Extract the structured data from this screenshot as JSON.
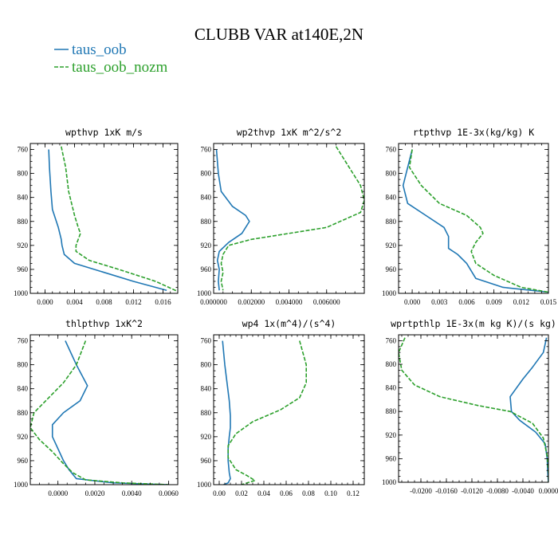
{
  "figure_title": "CLUBB VAR at140E,2N",
  "legend": [
    {
      "label": "taus_oob",
      "color": "#1f77b4",
      "dash": ""
    },
    {
      "label": "taus_oob_nozm",
      "color": "#2ca02c",
      "dash": "5,2"
    }
  ],
  "chart_data": [
    {
      "type": "line",
      "title": "wpthvp  1xK m/s",
      "xlim": [
        -0.002,
        0.018
      ],
      "ylim": [
        1000,
        750
      ],
      "xticks": [
        0.0,
        0.004,
        0.008,
        0.012,
        0.016
      ],
      "xtick_labels": [
        "0.000",
        "0.004",
        "0.008",
        "0.012",
        "0.016"
      ],
      "yticks": [
        760,
        800,
        840,
        880,
        920,
        960,
        1000
      ],
      "ytick_labels": [
        "760",
        "800",
        "840",
        "880",
        "920",
        "960",
        "1000"
      ],
      "series": [
        {
          "name": "taus_oob",
          "x": [
            0.0005,
            0.0006,
            0.0008,
            0.001,
            0.0018,
            0.0022,
            0.0023,
            0.0026,
            0.004,
            0.008,
            0.012,
            0.0165
          ],
          "y": [
            760,
            790,
            830,
            860,
            890,
            910,
            920,
            935,
            950,
            965,
            980,
            995
          ]
        },
        {
          "name": "taus_oob_nozm",
          "x": [
            0.0022,
            0.0028,
            0.0032,
            0.004,
            0.0045,
            0.0048,
            0.0042,
            0.0042,
            0.006,
            0.01,
            0.015,
            0.0182
          ],
          "y": [
            755,
            790,
            830,
            870,
            890,
            900,
            920,
            930,
            945,
            960,
            980,
            998
          ]
        }
      ]
    },
    {
      "type": "line",
      "title": "wp2thvp  1xK m^2/s^2",
      "xlim": [
        0.0,
        0.008
      ],
      "ylim": [
        1000,
        750
      ],
      "xticks": [
        0.0,
        0.002,
        0.004,
        0.006
      ],
      "xtick_labels": [
        "0.000000",
        "0.002000",
        "0.004000",
        "0.006000"
      ],
      "yticks": [
        760,
        800,
        840,
        880,
        920,
        960,
        1000
      ],
      "ytick_labels": [
        "760",
        "800",
        "840",
        "880",
        "920",
        "960",
        "1000"
      ],
      "series": [
        {
          "name": "taus_oob",
          "x": [
            0.00015,
            0.00025,
            0.0004,
            0.001,
            0.0017,
            0.0019,
            0.0015,
            0.0008,
            0.0003,
            0.0002,
            0.0003,
            0.00025,
            0.0003
          ],
          "y": [
            760,
            800,
            830,
            855,
            870,
            880,
            900,
            915,
            930,
            945,
            960,
            980,
            995
          ]
        },
        {
          "name": "taus_oob_nozm",
          "x": [
            0.0065,
            0.0072,
            0.0078,
            0.008,
            0.0078,
            0.006,
            0.002,
            0.0008,
            0.0005,
            0.0004,
            0.0005,
            0.0004,
            0.0005
          ],
          "y": [
            755,
            790,
            820,
            845,
            865,
            890,
            910,
            920,
            935,
            950,
            965,
            980,
            995
          ]
        }
      ]
    },
    {
      "type": "line",
      "title": "rtpthvp  1E-3x(kg/kg) K",
      "xlim": [
        -0.0015,
        0.015
      ],
      "ylim": [
        1000,
        750
      ],
      "xticks": [
        0.0,
        0.003,
        0.006,
        0.009,
        0.012,
        0.015
      ],
      "xtick_labels": [
        "0.000",
        "0.003",
        "0.006",
        "0.009",
        "0.012",
        "0.015"
      ],
      "yticks": [
        760,
        800,
        840,
        880,
        920,
        960,
        1000
      ],
      "ytick_labels": [
        "760",
        "800",
        "840",
        "880",
        "920",
        "960",
        "1000"
      ],
      "series": [
        {
          "name": "taus_oob",
          "x": [
            0.0,
            -0.0005,
            -0.001,
            -0.0005,
            0.0015,
            0.0035,
            0.004,
            0.004,
            0.005,
            0.006,
            0.007,
            0.01,
            0.015
          ],
          "y": [
            760,
            790,
            820,
            850,
            870,
            890,
            905,
            925,
            935,
            950,
            975,
            990,
            998
          ]
        },
        {
          "name": "taus_oob_nozm",
          "x": [
            0.0,
            -0.0003,
            0.001,
            0.003,
            0.006,
            0.0075,
            0.0078,
            0.007,
            0.0065,
            0.007,
            0.009,
            0.012,
            0.015
          ],
          "y": [
            760,
            790,
            820,
            850,
            870,
            890,
            900,
            915,
            930,
            950,
            970,
            990,
            998
          ]
        }
      ]
    },
    {
      "type": "line",
      "title": "thlpthvp  1xK^2",
      "xlim": [
        -0.0015,
        0.0065
      ],
      "ylim": [
        1000,
        750
      ],
      "xticks": [
        0.0,
        0.002,
        0.004,
        0.006
      ],
      "xtick_labels": [
        "0.0000",
        "0.0020",
        "0.0040",
        "0.0060"
      ],
      "yticks": [
        760,
        800,
        840,
        880,
        920,
        960,
        1000
      ],
      "ytick_labels": [
        "760",
        "800",
        "840",
        "880",
        "920",
        "960",
        "1000"
      ],
      "series": [
        {
          "name": "taus_oob",
          "x": [
            0.0004,
            0.001,
            0.0016,
            0.0012,
            0.0003,
            -0.0003,
            -0.0003,
            0.0,
            0.0003,
            0.0006,
            0.001,
            0.003,
            0.006
          ],
          "y": [
            760,
            800,
            835,
            860,
            880,
            900,
            920,
            940,
            960,
            975,
            990,
            997,
            1000
          ]
        },
        {
          "name": "taus_oob_nozm",
          "x": [
            0.0015,
            0.001,
            0.0003,
            -0.0005,
            -0.0013,
            -0.0015,
            -0.001,
            -0.0003,
            0.0003,
            0.0008,
            0.0015,
            0.0035,
            0.006
          ],
          "y": [
            760,
            800,
            830,
            855,
            880,
            905,
            925,
            945,
            965,
            980,
            992,
            997,
            1000
          ]
        }
      ]
    },
    {
      "type": "line",
      "title": "wp4  1x(m^4)/(s^4)",
      "xlim": [
        -0.005,
        0.13
      ],
      "ylim": [
        1000,
        750
      ],
      "xticks": [
        0.0,
        0.02,
        0.04,
        0.06,
        0.08,
        0.1,
        0.12
      ],
      "xtick_labels": [
        "0.00",
        "0.02",
        "0.04",
        "0.06",
        "0.08",
        "0.10",
        "0.12"
      ],
      "yticks": [
        760,
        800,
        840,
        880,
        920,
        960,
        1000
      ],
      "ytick_labels": [
        "760",
        "800",
        "840",
        "880",
        "920",
        "960",
        "1000"
      ],
      "series": [
        {
          "name": "taus_oob",
          "x": [
            0.003,
            0.005,
            0.007,
            0.009,
            0.01,
            0.01,
            0.009,
            0.008,
            0.008,
            0.009,
            0.01,
            0.008,
            0.004
          ],
          "y": [
            760,
            800,
            830,
            860,
            885,
            905,
            920,
            940,
            960,
            980,
            990,
            997,
            1000
          ]
        },
        {
          "name": "taus_oob_nozm",
          "x": [
            0.072,
            0.078,
            0.078,
            0.072,
            0.055,
            0.03,
            0.015,
            0.008,
            0.008,
            0.015,
            0.025,
            0.032,
            0.02
          ],
          "y": [
            760,
            800,
            830,
            855,
            875,
            895,
            915,
            935,
            955,
            975,
            985,
            993,
            1000
          ]
        }
      ]
    },
    {
      "type": "line",
      "title": "wprtpthlp  1E-3x(m kg K)/(s kg)",
      "xlim": [
        -0.0235,
        0.0
      ],
      "ylim": [
        1000,
        750
      ],
      "xticks": [
        -0.02,
        -0.016,
        -0.012,
        -0.008,
        -0.004,
        0.0
      ],
      "xtick_labels": [
        "-0.0200",
        "-0.0160",
        "-0.0120",
        "-0.0080",
        "-0.0040",
        "0.0000"
      ],
      "yticks": [
        760,
        800,
        840,
        880,
        920,
        960,
        1000
      ],
      "ytick_labels": [
        "760",
        "800",
        "840",
        "880",
        "920",
        "960",
        "1000"
      ],
      "series": [
        {
          "name": "taus_oob",
          "x": [
            -0.0003,
            -0.0008,
            -0.0025,
            -0.004,
            -0.006,
            -0.0058,
            -0.0045,
            -0.002,
            -0.0005,
            -0.0002,
            -0.0001,
            0.0
          ],
          "y": [
            755,
            780,
            805,
            825,
            855,
            880,
            895,
            915,
            935,
            960,
            985,
            1000
          ]
        },
        {
          "name": "taus_oob_nozm",
          "x": [
            -0.0225,
            -0.0235,
            -0.023,
            -0.021,
            -0.017,
            -0.011,
            -0.006,
            -0.0025,
            -0.0008,
            -0.0002,
            0.0,
            0.0
          ],
          "y": [
            755,
            780,
            810,
            835,
            855,
            870,
            880,
            900,
            925,
            955,
            985,
            1000
          ]
        }
      ]
    }
  ]
}
